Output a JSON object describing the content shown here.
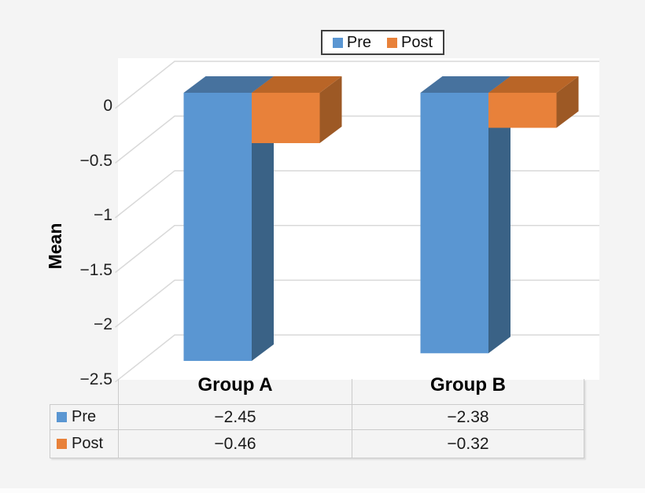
{
  "page": {
    "bg": "#F4F4F4",
    "plot_bg": "#FFFFFF",
    "grid_color": "#D9D9D9"
  },
  "legend": {
    "items": [
      {
        "label": "Pre",
        "color": "#5A96D2"
      },
      {
        "label": "Post",
        "color": "#E8813A"
      }
    ]
  },
  "chart_data": {
    "type": "bar",
    "projection": "3d",
    "title": "",
    "ylabel": "Mean",
    "xlabel": "",
    "categories": [
      "Group A",
      "Group B"
    ],
    "series": [
      {
        "name": "Pre",
        "color": "#5A96D2",
        "top_color": "#47729E",
        "side_color": "#3A6286",
        "values": [
          -2.45,
          -2.38
        ]
      },
      {
        "name": "Post",
        "color": "#E8813A",
        "top_color": "#B96527",
        "side_color": "#9D5925",
        "values": [
          -0.46,
          -0.32
        ]
      }
    ],
    "y_ticks": [
      {
        "value": 0,
        "label": "0"
      },
      {
        "value": -0.5,
        "label": "−0.5"
      },
      {
        "value": -1,
        "label": "−1"
      },
      {
        "value": -1.5,
        "label": "−1.5"
      },
      {
        "value": -2,
        "label": "−2"
      },
      {
        "value": -2.5,
        "label": "−2.5"
      }
    ],
    "ylim": [
      0,
      -2.5
    ],
    "grid": true,
    "legend_position": "top"
  },
  "table": {
    "rows": [
      {
        "label": "Pre",
        "swatch": "#5A96D2",
        "values": [
          "−2.45",
          "−2.38"
        ]
      },
      {
        "label": "Post",
        "swatch": "#E8813A",
        "values": [
          "−0.46",
          "−0.32"
        ]
      }
    ]
  }
}
